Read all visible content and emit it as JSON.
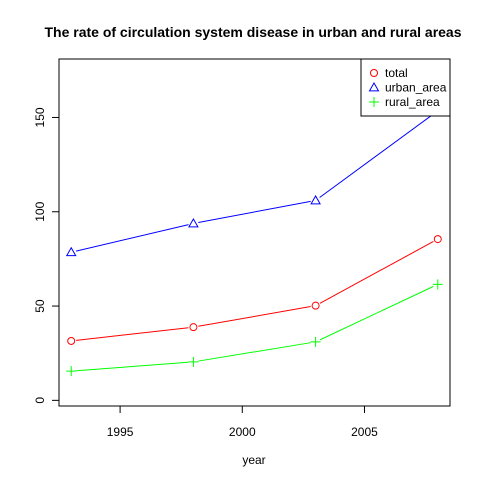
{
  "chart_data": {
    "type": "line",
    "title": "The rate of circulation system disease in urban and rural areas",
    "xlabel": "year",
    "ylabel": "",
    "x": [
      1993,
      1998,
      2003,
      2008
    ],
    "xlim": [
      1992.5,
      2008.5
    ],
    "ylim": [
      -3,
      181
    ],
    "xticks": [
      "1995",
      "2000",
      "2005"
    ],
    "yticks": [
      "0",
      "50",
      "100",
      "150"
    ],
    "legend_position": "top-right",
    "series": [
      {
        "name": "total",
        "values": [
          31.5,
          38.8,
          50.2,
          85.5
        ],
        "color": "#ff0000",
        "marker": "circle"
      },
      {
        "name": "urban_area",
        "values": [
          78.5,
          93.8,
          106.0,
          153.5
        ],
        "color": "#0000ff",
        "marker": "triangle"
      },
      {
        "name": "rural_area",
        "values": [
          15.5,
          20.4,
          31.0,
          61.5
        ],
        "color": "#00ff00",
        "marker": "plus"
      }
    ]
  }
}
